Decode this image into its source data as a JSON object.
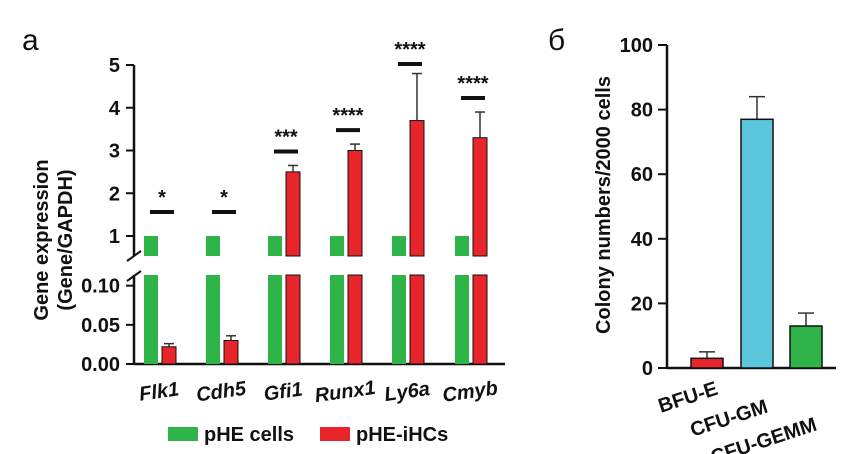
{
  "panels": {
    "a": {
      "label": "а"
    },
    "b": {
      "label": "б"
    }
  },
  "colors": {
    "green": "#2FB44A",
    "red": "#E8252A",
    "cyan": "#5BC6DC",
    "black": "#111111"
  },
  "chart_data": [
    {
      "panel": "а",
      "type": "bar",
      "ylabel_line1": "Gene expression",
      "ylabel_line2": "(Gene/GAPDH)",
      "broken_axis": true,
      "upper_ticks": [
        "1",
        "2",
        "3",
        "4",
        "5"
      ],
      "lower_ticks": [
        "0.00",
        "0.05",
        "0.10"
      ],
      "upper_ylim": [
        1,
        5
      ],
      "lower_ylim": [
        0,
        0.12
      ],
      "categories": [
        "Flk1",
        "Cdh5",
        "Gfi1",
        "Runx1",
        "Ly6a",
        "Cmyb"
      ],
      "series": [
        {
          "name": "pHE cells",
          "color": "#2FB44A",
          "values": [
            1,
            1,
            1,
            1,
            1,
            1
          ]
        },
        {
          "name": "pHE-iHCs",
          "color": "#E8252A",
          "values": [
            0.022,
            0.03,
            2.5,
            3.0,
            3.7,
            3.3
          ],
          "errors": [
            0.004,
            0.006,
            0.15,
            0.15,
            1.1,
            0.6
          ]
        }
      ],
      "significance": [
        "*",
        "*",
        "***",
        "****",
        "****",
        "****"
      ],
      "legend": {
        "placement": "bottom",
        "items": [
          "pHE cells",
          "pHE-iHCs"
        ]
      }
    },
    {
      "panel": "б",
      "type": "bar",
      "ylabel": "Colony numbers/2000 cells",
      "yticks": [
        "0",
        "20",
        "40",
        "60",
        "80",
        "100"
      ],
      "ylim": [
        0,
        100
      ],
      "categories": [
        "BFU-E",
        "CFU-GM",
        "CFU-GEMM"
      ],
      "values": [
        3,
        77,
        13
      ],
      "errors": [
        2,
        7,
        4
      ],
      "bar_colors": [
        "#E8252A",
        "#5BC6DC",
        "#2FB44A"
      ]
    }
  ]
}
